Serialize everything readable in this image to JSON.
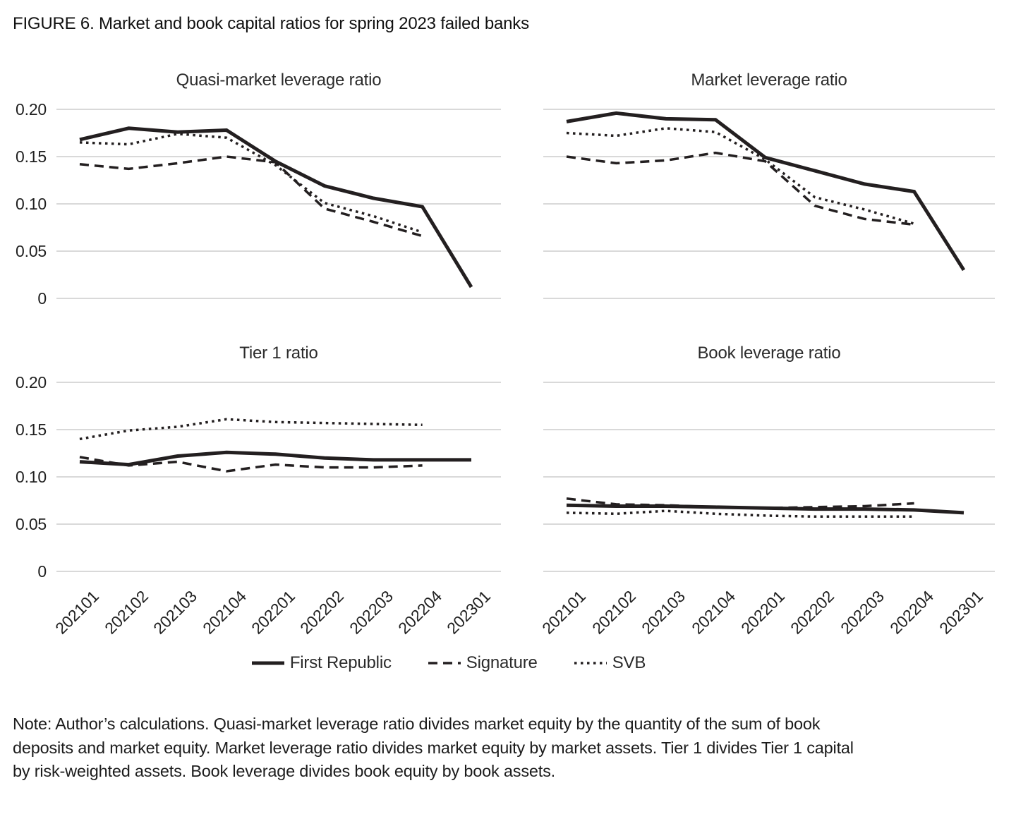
{
  "figure_title": "FIGURE 6. Market and book capital ratios for spring 2023 failed banks",
  "colors": {
    "line": "#231f20",
    "grid": "#d9d9d9",
    "text": "#1a1a1a",
    "background": "#ffffff"
  },
  "axis": {
    "x_tick_labels": [
      "202101",
      "202102",
      "202103",
      "202104",
      "202201",
      "202202",
      "202203",
      "202204",
      "202301"
    ],
    "y_tick_labels": [
      "0.20",
      "0.15",
      "0.10",
      "0.05",
      "0"
    ],
    "y_tick_values": [
      0.2,
      0.15,
      0.1,
      0.05,
      0
    ]
  },
  "legend": {
    "items": [
      {
        "label": "First Republic",
        "style": "solid"
      },
      {
        "label": "Signature",
        "style": "dashed"
      },
      {
        "label": "SVB",
        "style": "dotted"
      }
    ]
  },
  "chart_data": [
    {
      "type": "line",
      "title": "Quasi-market leverage ratio",
      "categories": [
        "202101",
        "202102",
        "202103",
        "202104",
        "202201",
        "202202",
        "202203",
        "202204",
        "202301"
      ],
      "ylim": [
        0,
        0.21
      ],
      "grid": true,
      "series": [
        {
          "name": "First Republic",
          "style": "solid",
          "values": [
            0.168,
            0.18,
            0.176,
            0.178,
            0.145,
            0.119,
            0.106,
            0.097,
            0.012
          ]
        },
        {
          "name": "Signature",
          "style": "dashed",
          "values": [
            0.142,
            0.137,
            0.143,
            0.15,
            0.144,
            0.095,
            0.081,
            0.066
          ]
        },
        {
          "name": "SVB",
          "style": "dotted",
          "values": [
            0.165,
            0.163,
            0.174,
            0.17,
            0.141,
            0.101,
            0.087,
            0.07
          ]
        }
      ]
    },
    {
      "type": "line",
      "title": "Market leverage ratio",
      "categories": [
        "202101",
        "202102",
        "202103",
        "202104",
        "202201",
        "202202",
        "202203",
        "202204",
        "202301"
      ],
      "ylim": [
        0,
        0.21
      ],
      "grid": true,
      "series": [
        {
          "name": "First Republic",
          "style": "solid",
          "values": [
            0.187,
            0.196,
            0.19,
            0.189,
            0.149,
            0.135,
            0.121,
            0.113,
            0.03
          ]
        },
        {
          "name": "Signature",
          "style": "dashed",
          "values": [
            0.15,
            0.143,
            0.146,
            0.154,
            0.145,
            0.098,
            0.084,
            0.078
          ]
        },
        {
          "name": "SVB",
          "style": "dotted",
          "values": [
            0.175,
            0.172,
            0.18,
            0.176,
            0.147,
            0.107,
            0.094,
            0.079
          ]
        }
      ]
    },
    {
      "type": "line",
      "title": "Tier 1 ratio",
      "categories": [
        "202101",
        "202102",
        "202103",
        "202104",
        "202201",
        "202202",
        "202203",
        "202204",
        "202301"
      ],
      "ylim": [
        0,
        0.21
      ],
      "grid": true,
      "series": [
        {
          "name": "First Republic",
          "style": "solid",
          "values": [
            0.116,
            0.113,
            0.122,
            0.126,
            0.124,
            0.12,
            0.118,
            0.118,
            0.118
          ]
        },
        {
          "name": "Signature",
          "style": "dashed",
          "values": [
            0.121,
            0.112,
            0.116,
            0.106,
            0.113,
            0.11,
            0.11,
            0.112
          ]
        },
        {
          "name": "SVB",
          "style": "dotted",
          "values": [
            0.14,
            0.149,
            0.153,
            0.161,
            0.158,
            0.157,
            0.156,
            0.155
          ]
        }
      ]
    },
    {
      "type": "line",
      "title": "Book leverage ratio",
      "categories": [
        "202101",
        "202102",
        "202103",
        "202104",
        "202201",
        "202202",
        "202203",
        "202204",
        "202301"
      ],
      "ylim": [
        0,
        0.21
      ],
      "grid": true,
      "series": [
        {
          "name": "First Republic",
          "style": "solid",
          "values": [
            0.07,
            0.069,
            0.069,
            0.068,
            0.067,
            0.066,
            0.066,
            0.065,
            0.062
          ]
        },
        {
          "name": "Signature",
          "style": "dashed",
          "values": [
            0.077,
            0.071,
            0.07,
            0.068,
            0.067,
            0.068,
            0.069,
            0.072
          ]
        },
        {
          "name": "SVB",
          "style": "dotted",
          "values": [
            0.062,
            0.061,
            0.064,
            0.061,
            0.059,
            0.058,
            0.058,
            0.058
          ]
        }
      ]
    }
  ],
  "note_lines": [
    "Note: Author’s calculations. Quasi-market leverage ratio divides market equity by the quantity of the sum of book",
    "deposits and market equity. Market leverage ratio divides market equity by market assets. Tier 1 divides Tier 1 capital",
    "by risk-weighted assets. Book leverage divides book equity by book assets."
  ]
}
